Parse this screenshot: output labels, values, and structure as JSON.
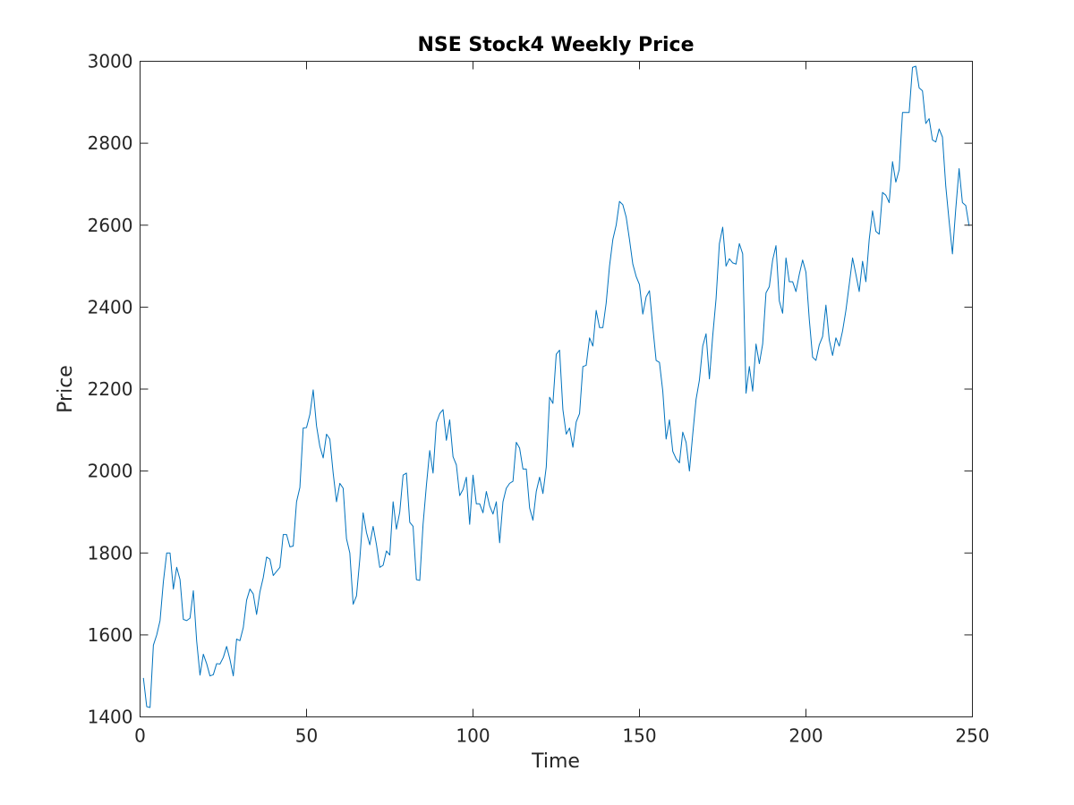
{
  "chart_data": {
    "type": "line",
    "title": "NSE Stock4 Weekly Price",
    "xlabel": "Time",
    "ylabel": "Price",
    "xlim": [
      0,
      250
    ],
    "ylim": [
      1400,
      3000
    ],
    "xticks": [
      0,
      50,
      100,
      150,
      200,
      250
    ],
    "yticks": [
      1400,
      1600,
      1800,
      2000,
      2200,
      2400,
      2600,
      2800,
      3000
    ],
    "grid": false,
    "legend": "none",
    "series": [
      {
        "color": "#0072BD",
        "x_start": 1,
        "x_step": 1,
        "values": [
          1495,
          1425,
          1423,
          1575,
          1600,
          1635,
          1730,
          1800,
          1800,
          1712,
          1765,
          1735,
          1638,
          1635,
          1641,
          1708,
          1585,
          1502,
          1553,
          1530,
          1500,
          1503,
          1530,
          1529,
          1545,
          1572,
          1540,
          1500,
          1590,
          1586,
          1618,
          1685,
          1712,
          1700,
          1650,
          1705,
          1740,
          1790,
          1785,
          1745,
          1755,
          1765,
          1845,
          1845,
          1815,
          1817,
          1925,
          1960,
          2105,
          2106,
          2138,
          2198,
          2110,
          2060,
          2032,
          2090,
          2078,
          1995,
          1925,
          1970,
          1958,
          1835,
          1800,
          1675,
          1695,
          1785,
          1898,
          1850,
          1820,
          1865,
          1820,
          1765,
          1770,
          1805,
          1795,
          1925,
          1858,
          1900,
          1990,
          1995,
          1875,
          1865,
          1735,
          1733,
          1870,
          1965,
          2050,
          1995,
          2118,
          2140,
          2150,
          2075,
          2125,
          2035,
          2015,
          1940,
          1955,
          1985,
          1870,
          1990,
          1920,
          1920,
          1898,
          1950,
          1915,
          1895,
          1925,
          1825,
          1925,
          1958,
          1970,
          1975,
          2070,
          2056,
          2005,
          2005,
          1910,
          1880,
          1950,
          1985,
          1945,
          2010,
          2180,
          2165,
          2285,
          2295,
          2150,
          2090,
          2105,
          2058,
          2120,
          2140,
          2255,
          2258,
          2325,
          2305,
          2392,
          2350,
          2350,
          2410,
          2500,
          2565,
          2600,
          2658,
          2650,
          2620,
          2565,
          2505,
          2475,
          2455,
          2383,
          2425,
          2440,
          2352,
          2270,
          2265,
          2195,
          2078,
          2125,
          2048,
          2030,
          2020,
          2095,
          2070,
          2000,
          2090,
          2175,
          2222,
          2305,
          2335,
          2225,
          2330,
          2420,
          2555,
          2595,
          2500,
          2518,
          2508,
          2505,
          2555,
          2530,
          2190,
          2255,
          2195,
          2310,
          2262,
          2310,
          2435,
          2450,
          2515,
          2550,
          2415,
          2385,
          2520,
          2462,
          2462,
          2438,
          2480,
          2515,
          2485,
          2370,
          2278,
          2270,
          2308,
          2328,
          2405,
          2320,
          2282,
          2325,
          2305,
          2342,
          2392,
          2455,
          2520,
          2480,
          2438,
          2512,
          2462,
          2565,
          2635,
          2585,
          2578,
          2680,
          2673,
          2655,
          2755,
          2705,
          2735,
          2875,
          2875,
          2875,
          2985,
          2988,
          2935,
          2928,
          2848,
          2860,
          2808,
          2803,
          2835,
          2815,
          2695,
          2610,
          2530,
          2640,
          2738,
          2655,
          2648,
          2598
        ]
      }
    ]
  }
}
